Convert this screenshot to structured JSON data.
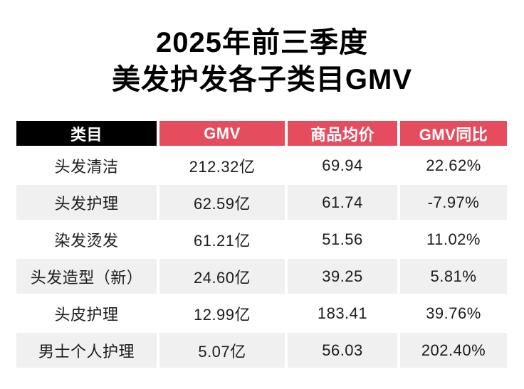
{
  "title": {
    "line1": "2025年前三季度",
    "line2": "美发护发各子类目GMV"
  },
  "table": {
    "columns": [
      "类目",
      "GMV",
      "商品均价",
      "GMV同比"
    ],
    "rows": [
      {
        "category": "头发清洁",
        "gmv": "212.32亿",
        "avg_price": "69.94",
        "yoy": "22.62%"
      },
      {
        "category": "头发护理",
        "gmv": "62.59亿",
        "avg_price": "61.74",
        "yoy": "-7.97%"
      },
      {
        "category": "染发烫发",
        "gmv": "61.21亿",
        "avg_price": "51.56",
        "yoy": "11.02%"
      },
      {
        "category": "头发造型（新）",
        "gmv": "24.60亿",
        "avg_price": "39.25",
        "yoy": "5.81%"
      },
      {
        "category": "头皮护理",
        "gmv": "12.99亿",
        "avg_price": "183.41",
        "yoy": "39.76%"
      },
      {
        "category": "男士个人护理",
        "gmv": "5.07亿",
        "avg_price": "56.03",
        "yoy": "202.40%"
      }
    ]
  },
  "colors": {
    "header_category_bg": "#000000",
    "header_metric_bg": "#e54d5f",
    "header_text": "#ffffff",
    "row_alt_bg": "#f0f0f0",
    "body_text": "#1c1c1c"
  },
  "chart_data": {
    "type": "table",
    "title": "2025年前三季度 美发护发各子类目GMV",
    "columns": [
      "类目",
      "GMV",
      "商品均价",
      "GMV同比"
    ],
    "rows": [
      [
        "头发清洁",
        "212.32亿",
        "69.94",
        "22.62%"
      ],
      [
        "头发护理",
        "62.59亿",
        "61.74",
        "-7.97%"
      ],
      [
        "染发烫发",
        "61.21亿",
        "51.56",
        "11.02%"
      ],
      [
        "头发造型（新）",
        "24.60亿",
        "39.25",
        "5.81%"
      ],
      [
        "头皮护理",
        "12.99亿",
        "183.41",
        "39.76%"
      ],
      [
        "男士个人护理",
        "5.07亿",
        "56.03",
        "202.40%"
      ]
    ],
    "gmv_numeric_yi": [
      212.32,
      62.59,
      61.21,
      24.6,
      12.99,
      5.07
    ],
    "avg_price_numeric": [
      69.94,
      61.74,
      51.56,
      39.25,
      183.41,
      56.03
    ],
    "gmv_yoy_pct": [
      22.62,
      -7.97,
      11.02,
      5.81,
      39.76,
      202.4
    ]
  }
}
